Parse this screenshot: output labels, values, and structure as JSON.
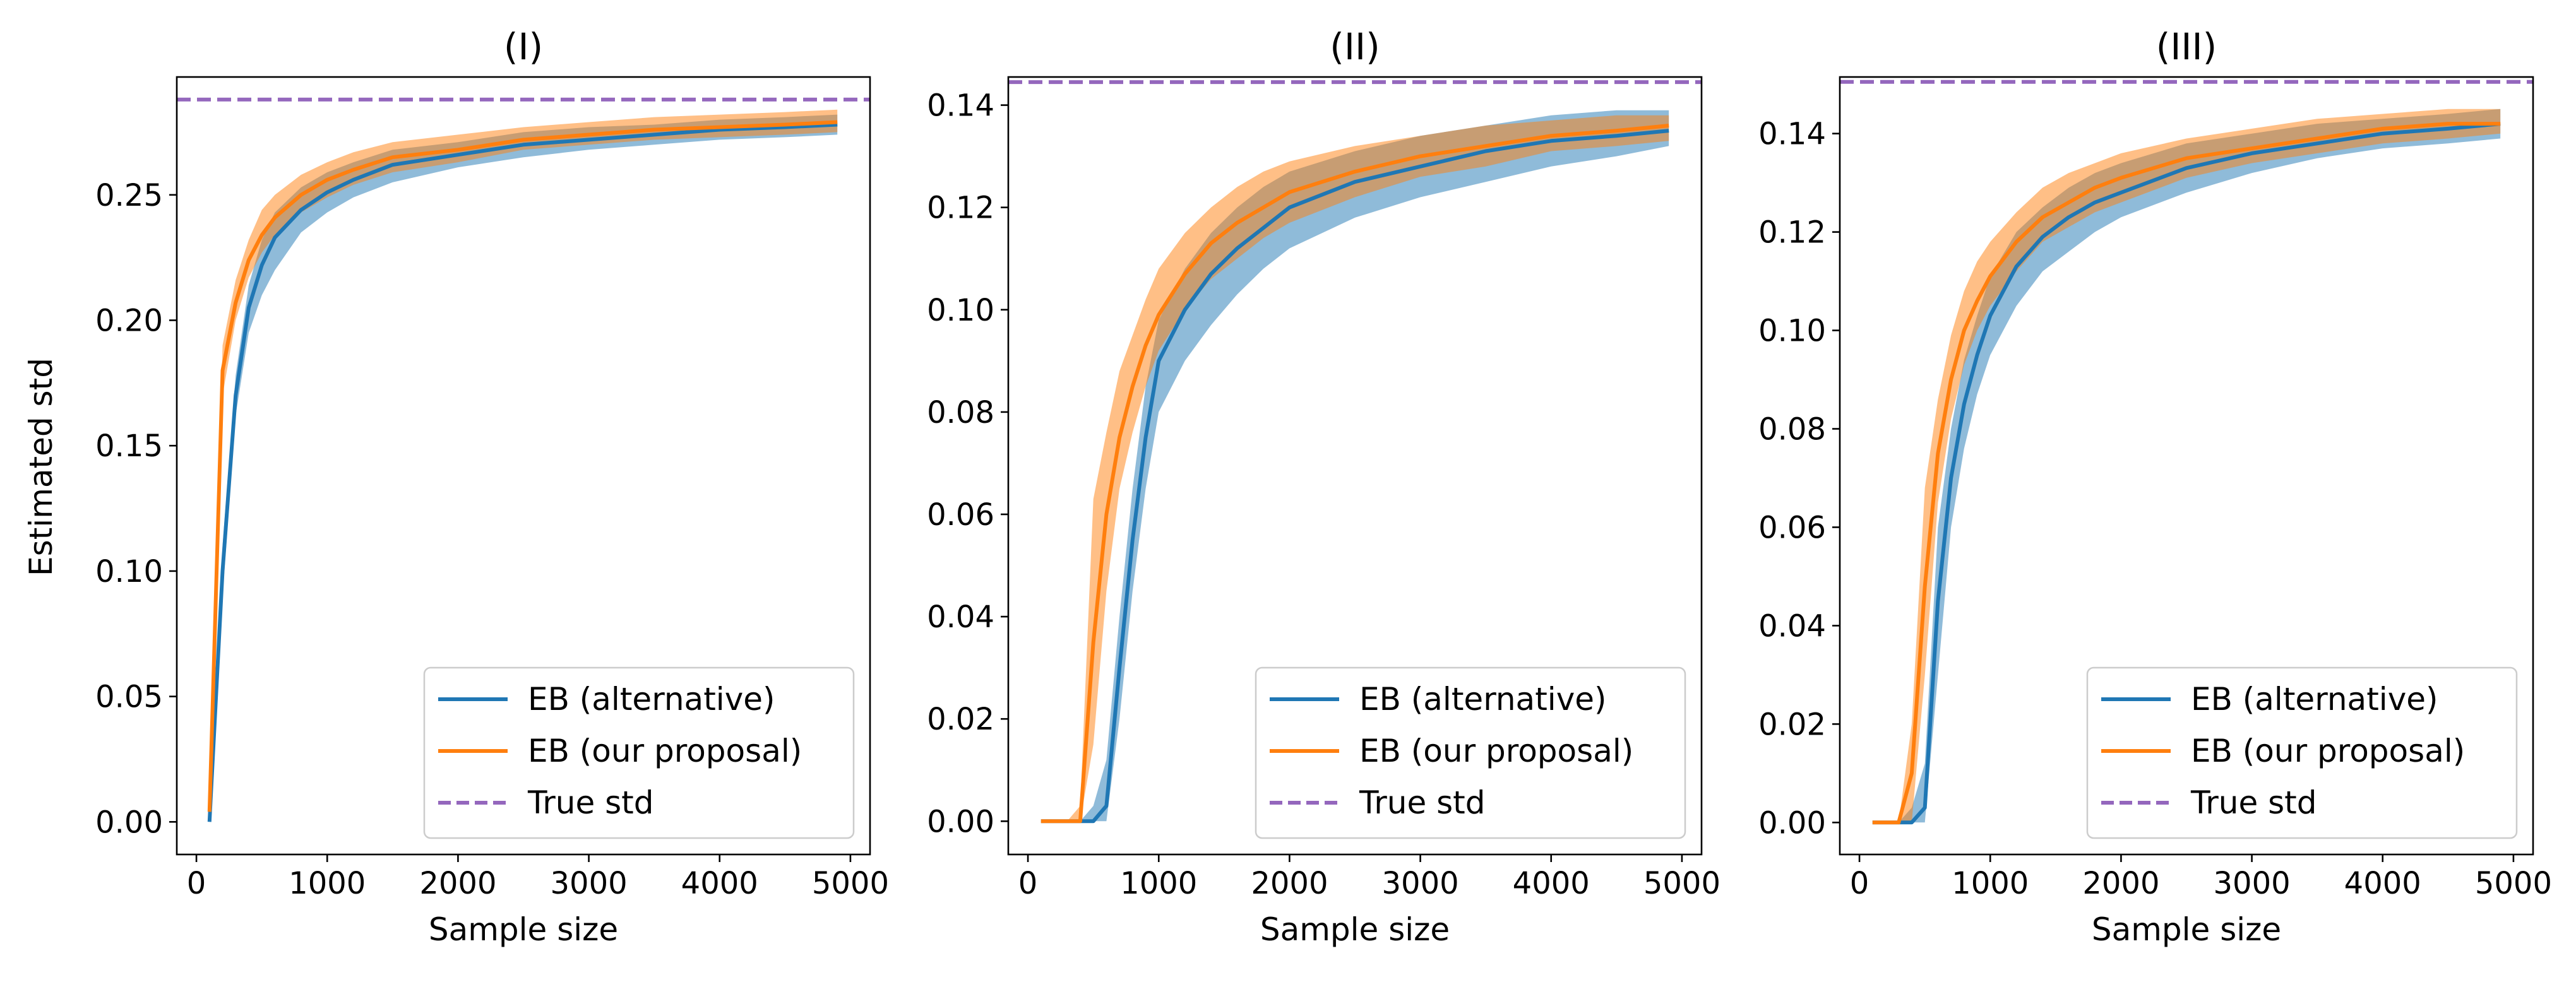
{
  "figure": {
    "ylabel": "Estimated std"
  },
  "chart_data": [
    {
      "type": "line",
      "title": "(I)",
      "xlabel": "Sample size",
      "ylabel": "Estimated std",
      "xlim": [
        -150,
        5150
      ],
      "ylim": [
        -0.013,
        0.297
      ],
      "xticks": [
        0,
        1000,
        2000,
        3000,
        4000,
        5000
      ],
      "xtick_labels": [
        "0",
        "1000",
        "2000",
        "3000",
        "4000",
        "5000"
      ],
      "yticks": [
        0,
        0.05,
        0.1,
        0.15,
        0.2,
        0.25
      ],
      "ytick_labels": [
        "0.00",
        "0.05",
        "0.10",
        "0.15",
        "0.20",
        "0.25"
      ],
      "legend_position": "lower-right",
      "reference": {
        "name": "True std",
        "value": 0.288,
        "color": "#9467bd",
        "style": "dashed"
      },
      "series": [
        {
          "name": "EB (alternative)",
          "color": "#1f77b4",
          "x": [
            100,
            200,
            300,
            400,
            500,
            600,
            800,
            1000,
            1200,
            1500,
            2000,
            2500,
            3000,
            3500,
            4000,
            4500,
            4900
          ],
          "mean": [
            0.0,
            0.1,
            0.17,
            0.205,
            0.222,
            0.233,
            0.244,
            0.251,
            0.256,
            0.262,
            0.266,
            0.27,
            0.272,
            0.274,
            0.276,
            0.277,
            0.278
          ],
          "lower": [
            0.0,
            0.09,
            0.162,
            0.195,
            0.21,
            0.22,
            0.235,
            0.243,
            0.249,
            0.255,
            0.261,
            0.265,
            0.268,
            0.27,
            0.272,
            0.273,
            0.274
          ],
          "upper": [
            0.005,
            0.11,
            0.178,
            0.214,
            0.232,
            0.243,
            0.253,
            0.259,
            0.263,
            0.268,
            0.271,
            0.275,
            0.277,
            0.278,
            0.28,
            0.281,
            0.282
          ]
        },
        {
          "name": "EB (our proposal)",
          "color": "#ff7f0e",
          "x": [
            100,
            200,
            300,
            400,
            500,
            600,
            800,
            1000,
            1200,
            1500,
            2000,
            2500,
            3000,
            3500,
            4000,
            4500,
            4900
          ],
          "mean": [
            0.004,
            0.18,
            0.207,
            0.224,
            0.234,
            0.241,
            0.25,
            0.256,
            0.26,
            0.265,
            0.268,
            0.272,
            0.274,
            0.276,
            0.277,
            0.278,
            0.279
          ],
          "lower": [
            0.0,
            0.17,
            0.2,
            0.217,
            0.227,
            0.234,
            0.243,
            0.249,
            0.254,
            0.259,
            0.263,
            0.268,
            0.27,
            0.272,
            0.273,
            0.274,
            0.275
          ],
          "upper": [
            0.01,
            0.19,
            0.216,
            0.232,
            0.244,
            0.25,
            0.258,
            0.263,
            0.267,
            0.271,
            0.274,
            0.277,
            0.279,
            0.281,
            0.282,
            0.283,
            0.284
          ]
        }
      ]
    },
    {
      "type": "line",
      "title": "(II)",
      "xlabel": "Sample size",
      "ylabel": "",
      "xlim": [
        -150,
        5150
      ],
      "ylim": [
        -0.0065,
        0.1455
      ],
      "xticks": [
        0,
        1000,
        2000,
        3000,
        4000,
        5000
      ],
      "xtick_labels": [
        "0",
        "1000",
        "2000",
        "3000",
        "4000",
        "5000"
      ],
      "yticks": [
        0,
        0.02,
        0.04,
        0.06,
        0.08,
        0.1,
        0.12,
        0.14
      ],
      "ytick_labels": [
        "0.00",
        "0.02",
        "0.04",
        "0.06",
        "0.08",
        "0.10",
        "0.12",
        "0.14"
      ],
      "legend_position": "lower-right",
      "reference": {
        "name": "True std",
        "value": 0.1445,
        "color": "#9467bd",
        "style": "dashed"
      },
      "series": [
        {
          "name": "EB (alternative)",
          "color": "#1f77b4",
          "x": [
            100,
            200,
            300,
            400,
            500,
            600,
            700,
            800,
            900,
            1000,
            1200,
            1400,
            1600,
            1800,
            2000,
            2500,
            3000,
            3500,
            4000,
            4500,
            4900
          ],
          "mean": [
            0,
            0,
            0,
            0,
            0,
            0.003,
            0.03,
            0.055,
            0.075,
            0.09,
            0.1,
            0.107,
            0.112,
            0.116,
            0.12,
            0.125,
            0.128,
            0.131,
            0.133,
            0.134,
            0.135
          ],
          "lower": [
            0,
            0,
            0,
            0,
            0,
            0,
            0.02,
            0.045,
            0.065,
            0.08,
            0.09,
            0.097,
            0.103,
            0.108,
            0.112,
            0.118,
            0.122,
            0.125,
            0.128,
            0.13,
            0.132
          ],
          "upper": [
            0,
            0,
            0,
            0,
            0.003,
            0.012,
            0.04,
            0.065,
            0.085,
            0.098,
            0.108,
            0.115,
            0.12,
            0.124,
            0.127,
            0.131,
            0.134,
            0.136,
            0.138,
            0.139,
            0.139
          ]
        },
        {
          "name": "EB (our proposal)",
          "color": "#ff7f0e",
          "x": [
            100,
            200,
            300,
            400,
            500,
            600,
            700,
            800,
            900,
            1000,
            1200,
            1400,
            1600,
            1800,
            2000,
            2500,
            3000,
            3500,
            4000,
            4500,
            4900
          ],
          "mean": [
            0,
            0,
            0,
            0,
            0.035,
            0.06,
            0.075,
            0.085,
            0.093,
            0.099,
            0.107,
            0.113,
            0.117,
            0.12,
            0.123,
            0.127,
            0.13,
            0.132,
            0.134,
            0.135,
            0.136
          ],
          "lower": [
            0,
            0,
            0,
            0,
            0.015,
            0.045,
            0.065,
            0.076,
            0.085,
            0.092,
            0.1,
            0.106,
            0.11,
            0.114,
            0.117,
            0.122,
            0.126,
            0.128,
            0.131,
            0.132,
            0.133
          ],
          "upper": [
            0,
            0,
            0,
            0.003,
            0.063,
            0.076,
            0.088,
            0.095,
            0.102,
            0.108,
            0.115,
            0.12,
            0.124,
            0.127,
            0.129,
            0.132,
            0.134,
            0.136,
            0.137,
            0.138,
            0.138
          ]
        }
      ]
    },
    {
      "type": "line",
      "title": "(III)",
      "xlabel": "Sample size",
      "ylabel": "",
      "xlim": [
        -150,
        5150
      ],
      "ylim": [
        -0.0065,
        0.1515
      ],
      "xticks": [
        0,
        1000,
        2000,
        3000,
        4000,
        5000
      ],
      "xtick_labels": [
        "0",
        "1000",
        "2000",
        "3000",
        "4000",
        "5000"
      ],
      "yticks": [
        0,
        0.02,
        0.04,
        0.06,
        0.08,
        0.1,
        0.12,
        0.14
      ],
      "ytick_labels": [
        "0.00",
        "0.02",
        "0.04",
        "0.06",
        "0.08",
        "0.10",
        "0.12",
        "0.14"
      ],
      "legend_position": "lower-right",
      "reference": {
        "name": "True std",
        "value": 0.1505,
        "color": "#9467bd",
        "style": "dashed"
      },
      "series": [
        {
          "name": "EB (alternative)",
          "color": "#1f77b4",
          "x": [
            100,
            200,
            300,
            400,
            500,
            600,
            700,
            800,
            900,
            1000,
            1200,
            1400,
            1600,
            1800,
            2000,
            2500,
            3000,
            3500,
            4000,
            4500,
            4900
          ],
          "mean": [
            0,
            0,
            0,
            0,
            0.003,
            0.045,
            0.07,
            0.085,
            0.095,
            0.103,
            0.113,
            0.119,
            0.123,
            0.126,
            0.128,
            0.133,
            0.136,
            0.138,
            0.14,
            0.141,
            0.142
          ],
          "lower": [
            0,
            0,
            0,
            0,
            0,
            0.03,
            0.06,
            0.076,
            0.087,
            0.095,
            0.105,
            0.112,
            0.116,
            0.12,
            0.123,
            0.128,
            0.132,
            0.135,
            0.137,
            0.138,
            0.139
          ],
          "upper": [
            0,
            0,
            0,
            0.003,
            0.012,
            0.06,
            0.08,
            0.094,
            0.103,
            0.111,
            0.12,
            0.125,
            0.129,
            0.132,
            0.134,
            0.138,
            0.14,
            0.142,
            0.143,
            0.144,
            0.145
          ]
        },
        {
          "name": "EB (our proposal)",
          "color": "#ff7f0e",
          "x": [
            100,
            200,
            300,
            400,
            500,
            600,
            700,
            800,
            900,
            1000,
            1200,
            1400,
            1600,
            1800,
            2000,
            2500,
            3000,
            3500,
            4000,
            4500,
            4900
          ],
          "mean": [
            0,
            0,
            0,
            0.01,
            0.048,
            0.075,
            0.09,
            0.1,
            0.106,
            0.111,
            0.118,
            0.123,
            0.126,
            0.129,
            0.131,
            0.135,
            0.137,
            0.139,
            0.141,
            0.142,
            0.142
          ],
          "lower": [
            0,
            0,
            0,
            0,
            0.03,
            0.065,
            0.082,
            0.093,
            0.1,
            0.105,
            0.112,
            0.118,
            0.121,
            0.124,
            0.126,
            0.131,
            0.134,
            0.136,
            0.138,
            0.139,
            0.14
          ],
          "upper": [
            0,
            0,
            0,
            0.02,
            0.068,
            0.086,
            0.099,
            0.108,
            0.114,
            0.118,
            0.124,
            0.129,
            0.132,
            0.134,
            0.136,
            0.139,
            0.141,
            0.143,
            0.144,
            0.145,
            0.145
          ]
        }
      ]
    }
  ]
}
